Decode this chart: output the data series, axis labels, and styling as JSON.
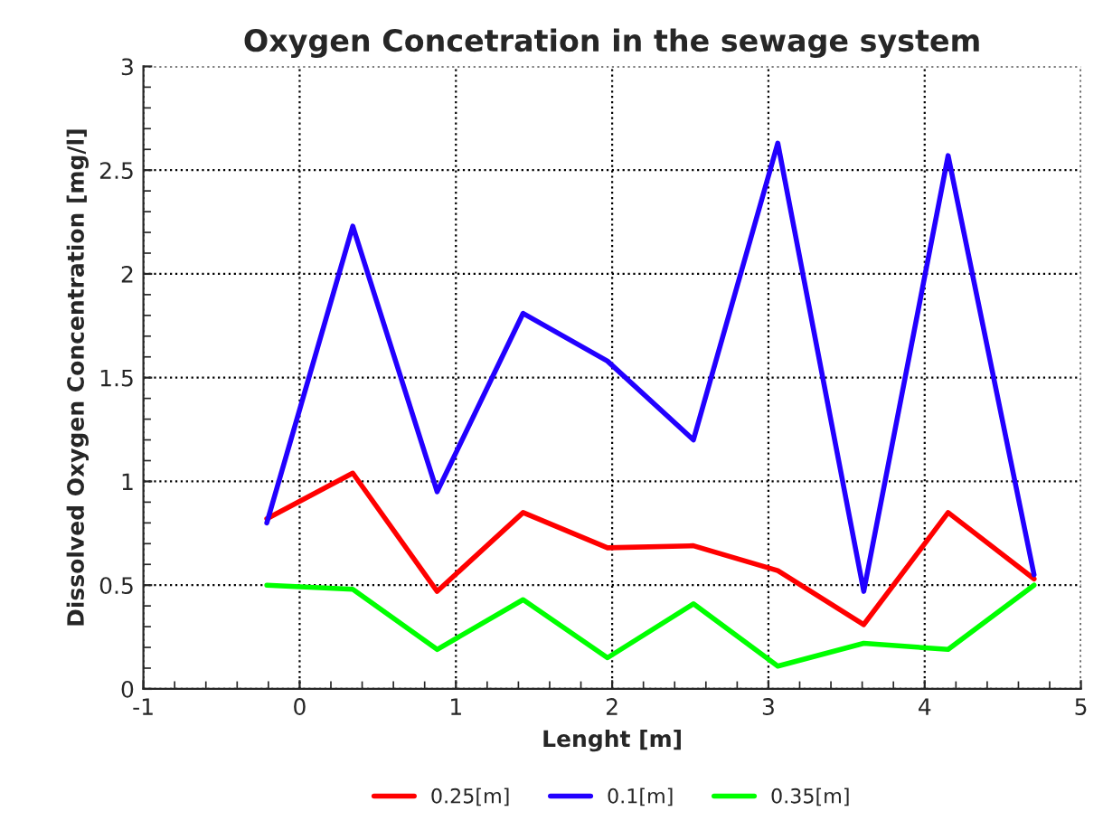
{
  "chart_data": {
    "type": "line",
    "title": "Oxygen Concetration in the sewage system",
    "xlabel": "Lenght [m]",
    "ylabel": "Dissolved Oxygen Concentration [mg/l]",
    "x": [
      -0.21,
      0.34,
      0.88,
      1.43,
      1.97,
      2.52,
      3.06,
      3.61,
      4.15,
      4.7
    ],
    "series": [
      {
        "name": "0.25[m]",
        "color": "#ff0000",
        "values": [
          0.82,
          1.04,
          0.47,
          0.85,
          0.68,
          0.69,
          0.57,
          0.31,
          0.85,
          0.53
        ]
      },
      {
        "name": "0.1[m]",
        "color": "#2200ff",
        "values": [
          0.8,
          2.23,
          0.95,
          1.81,
          1.58,
          1.2,
          2.63,
          0.47,
          2.57,
          0.55
        ]
      },
      {
        "name": "0.35[m]",
        "color": "#00ff00",
        "values": [
          0.5,
          0.48,
          0.19,
          0.43,
          0.15,
          0.41,
          0.11,
          0.22,
          0.19,
          0.5
        ]
      }
    ],
    "xlim": [
      -1,
      5
    ],
    "xticks": [
      -1,
      0,
      1,
      2,
      3,
      4,
      5
    ],
    "ylim": [
      0,
      3
    ],
    "yticks": [
      0,
      0.5,
      1,
      1.5,
      2,
      2.5,
      3
    ],
    "grid": true,
    "legend": "bottom",
    "marker": "none",
    "line_style": "solid"
  }
}
